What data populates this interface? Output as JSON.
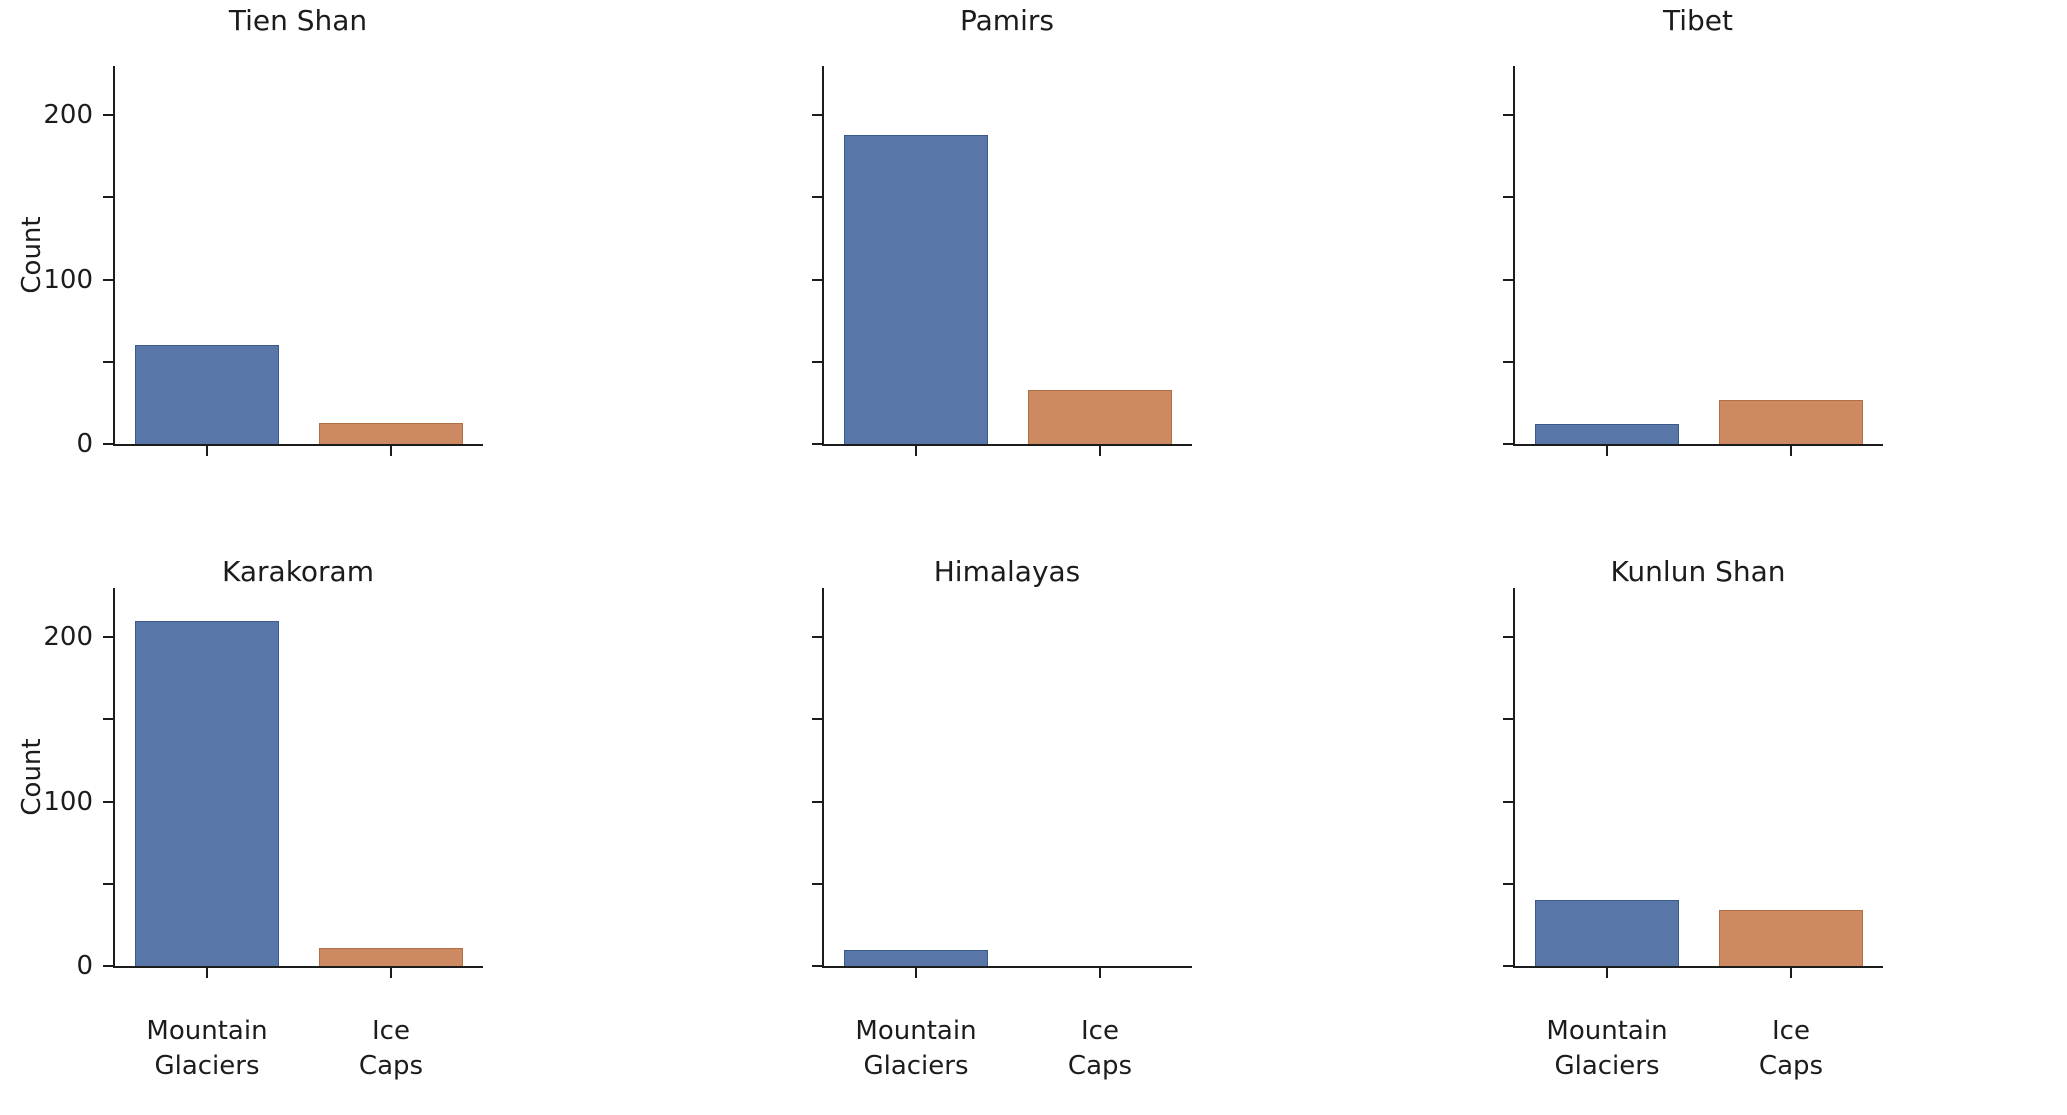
{
  "figure": {
    "background_color": "#ffffff",
    "text_color": "#1c1c1c",
    "spine_color": "#1c1c1c"
  },
  "chart_data": {
    "type": "bar",
    "facet_grid": {
      "rows": 2,
      "cols": 3
    },
    "categories": [
      "Mountain Glaciers",
      "Ice Caps"
    ],
    "xtick_labels": [
      [
        "Mountain",
        "Glaciers"
      ],
      [
        "Ice",
        "Caps"
      ]
    ],
    "ylabel": "Count",
    "ytick_labels": [
      "0",
      "100",
      "200"
    ],
    "yticks_major": [
      0,
      100,
      200
    ],
    "yticks_minor": [
      50,
      150
    ],
    "ylim": [
      0,
      230
    ],
    "grid": "off",
    "legend": "none",
    "bar_colors": [
      "#5876a8",
      "#cc8962"
    ],
    "bar_edge_colors": [
      "#3a5a8c",
      "#b06f45"
    ],
    "facets": [
      {
        "title": "Tien Shan",
        "values": [
          60,
          13
        ]
      },
      {
        "title": "Pamirs",
        "values": [
          188,
          33
        ]
      },
      {
        "title": "Tibet",
        "values": [
          12,
          27
        ]
      },
      {
        "title": "Karakoram",
        "values": [
          210,
          11
        ]
      },
      {
        "title": "Himalayas",
        "values": [
          10,
          0
        ]
      },
      {
        "title": "Kunlun Shan",
        "values": [
          40,
          34
        ]
      }
    ]
  }
}
